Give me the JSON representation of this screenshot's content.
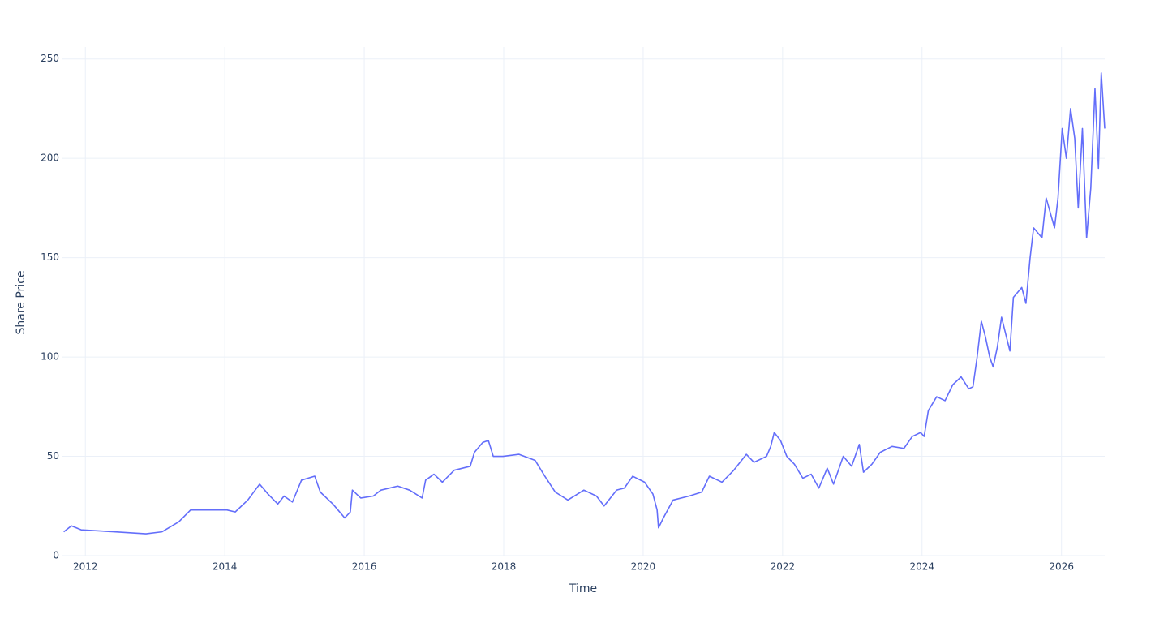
{
  "chart_data": {
    "type": "line",
    "x_label": "Time",
    "y_label": "Share Price",
    "color": "#636efa",
    "grid": true,
    "x": [
      2011.69,
      2011.8,
      2011.94,
      2012.41,
      2012.87,
      2013.1,
      2013.34,
      2013.51,
      2013.8,
      2014.03,
      2014.15,
      2014.33,
      2014.5,
      2014.62,
      2014.76,
      2014.85,
      2014.97,
      2015.1,
      2015.29,
      2015.37,
      2015.55,
      2015.72,
      2015.8,
      2015.83,
      2015.95,
      2016.13,
      2016.24,
      2016.48,
      2016.65,
      2016.83,
      2016.88,
      2017.0,
      2017.12,
      2017.29,
      2017.52,
      2017.58,
      2017.7,
      2017.78,
      2017.85,
      2017.99,
      2018.22,
      2018.45,
      2018.59,
      2018.74,
      2018.92,
      2019.15,
      2019.33,
      2019.44,
      2019.62,
      2019.73,
      2019.85,
      2020.02,
      2020.14,
      2020.2,
      2020.22,
      2020.29,
      2020.43,
      2020.66,
      2020.84,
      2020.95,
      2021.13,
      2021.3,
      2021.48,
      2021.59,
      2021.77,
      2021.83,
      2021.88,
      2021.97,
      2022.06,
      2022.17,
      2022.29,
      2022.41,
      2022.52,
      2022.64,
      2022.73,
      2022.87,
      2022.99,
      2023.1,
      2023.16,
      2023.28,
      2023.4,
      2023.57,
      2023.74,
      2023.86,
      2023.98,
      2024.03,
      2024.09,
      2024.21,
      2024.33,
      2024.44,
      2024.56,
      2024.67,
      2024.73,
      2024.79,
      2024.85,
      2024.91,
      2024.97,
      2025.02,
      2025.08,
      2025.14,
      2025.26,
      2025.31,
      2025.43,
      2025.49,
      2025.55,
      2025.6,
      2025.72,
      2025.78,
      2025.9,
      2025.95,
      2026.01,
      2026.07,
      2026.13,
      2026.19,
      2026.24,
      2026.3,
      2026.36,
      2026.42,
      2026.48,
      2026.53,
      2026.57,
      2026.62
    ],
    "values": [
      12,
      15,
      13,
      12,
      11,
      12,
      17,
      23,
      23,
      23,
      22,
      28,
      36,
      31,
      26,
      30,
      27,
      38,
      40,
      32,
      26,
      19,
      22,
      33,
      29,
      30,
      33,
      35,
      33,
      29,
      38,
      41,
      37,
      43,
      45,
      52,
      57,
      58,
      50,
      50,
      51,
      48,
      40,
      32,
      28,
      33,
      30,
      25,
      33,
      34,
      40,
      37,
      31,
      23,
      14,
      19,
      28,
      30,
      32,
      40,
      37,
      43,
      51,
      47,
      50,
      55,
      62,
      58,
      50,
      46,
      39,
      41,
      34,
      44,
      36,
      50,
      45,
      56,
      42,
      46,
      52,
      55,
      54,
      60,
      62,
      60,
      73,
      80,
      78,
      86,
      90,
      84,
      85,
      100,
      118,
      110,
      100,
      95,
      105,
      120,
      103,
      130,
      135,
      127,
      150,
      165,
      160,
      180,
      165,
      180,
      215,
      200,
      225,
      210,
      175,
      215,
      160,
      185,
      235,
      195,
      243,
      215
    ],
    "xlim": [
      2011.66,
      2026.62
    ],
    "xticks": [
      2012,
      2014,
      2016,
      2018,
      2020,
      2022,
      2024,
      2026
    ],
    "ylim": [
      0,
      256
    ],
    "yticks": [
      0,
      50,
      100,
      150,
      200,
      250
    ]
  }
}
